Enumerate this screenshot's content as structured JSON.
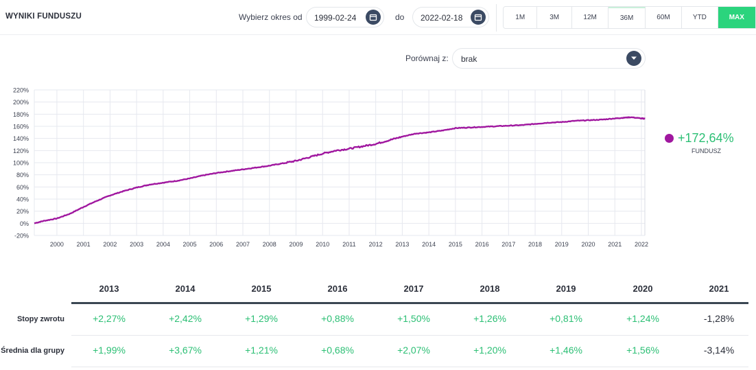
{
  "header": {
    "title": "WYNIKI FUNDUSZU",
    "period_label": "Wybierz okres od",
    "date_from": "1999-02-24",
    "to_label": "do",
    "date_to": "2022-02-18",
    "ranges": [
      "1M",
      "3M",
      "12M",
      "36M",
      "60M",
      "YTD",
      "MAX"
    ],
    "active_range": "MAX"
  },
  "compare": {
    "label": "Porównaj z:",
    "value": "brak"
  },
  "legend": {
    "value": "+172,64%",
    "name": "FUNDUSZ",
    "color": "#a0179f"
  },
  "colors": {
    "accent": "#2bd47d",
    "positive": "#2bbf74",
    "line": "#a0179f",
    "dark_button": "#3b4a63"
  },
  "chart_data": {
    "type": "line",
    "title": "",
    "xlabel": "",
    "ylabel": "",
    "ylim": [
      -20,
      220
    ],
    "y_ticks": [
      "220%",
      "200%",
      "180%",
      "160%",
      "140%",
      "120%",
      "100%",
      "80%",
      "60%",
      "40%",
      "20%",
      "0%",
      "-20%"
    ],
    "x_ticks": [
      "2000",
      "2001",
      "2002",
      "2003",
      "2004",
      "2005",
      "2006",
      "2007",
      "2008",
      "2009",
      "2010",
      "2011",
      "2012",
      "2013",
      "2014",
      "2015",
      "2016",
      "2017",
      "2018",
      "2019",
      "2020",
      "2021",
      "2022"
    ],
    "grid": true,
    "series": [
      {
        "name": "FUNDUSZ",
        "x": [
          1999.15,
          1999.5,
          2000.0,
          2000.5,
          2001.0,
          2001.5,
          2002.0,
          2002.5,
          2003.0,
          2003.5,
          2004.0,
          2004.5,
          2005.0,
          2005.5,
          2006.0,
          2006.5,
          2007.0,
          2007.5,
          2008.0,
          2008.5,
          2009.0,
          2009.5,
          2010.0,
          2010.5,
          2011.0,
          2011.5,
          2012.0,
          2012.5,
          2013.0,
          2013.5,
          2014.0,
          2014.5,
          2015.0,
          2015.5,
          2016.0,
          2016.5,
          2017.0,
          2017.5,
          2018.0,
          2018.5,
          2019.0,
          2019.5,
          2020.0,
          2020.5,
          2021.0,
          2021.3,
          2021.6,
          2022.0,
          2022.13
        ],
        "y": [
          0,
          4,
          8,
          16,
          27,
          37,
          46,
          53,
          59,
          64,
          67,
          70,
          74,
          79,
          83,
          86,
          89,
          92,
          95,
          99,
          103,
          109,
          115,
          120,
          123,
          127,
          131,
          137,
          143,
          148,
          150,
          153,
          157,
          158,
          159,
          160,
          161,
          162,
          164,
          166,
          167,
          169,
          170,
          171,
          173,
          174,
          175,
          173,
          172.64
        ]
      }
    ]
  },
  "returns_table": {
    "years": [
      "2013",
      "2014",
      "2015",
      "2016",
      "2017",
      "2018",
      "2019",
      "2020",
      "2021"
    ],
    "rows": [
      {
        "label": "Stopy zwrotu",
        "values": [
          "+2,27%",
          "+2,42%",
          "+1,29%",
          "+0,88%",
          "+1,50%",
          "+1,26%",
          "+0,81%",
          "+1,24%",
          "-1,28%"
        ]
      },
      {
        "label": "Średnia dla grupy",
        "values": [
          "+1,99%",
          "+3,67%",
          "+1,21%",
          "+0,68%",
          "+2,07%",
          "+1,20%",
          "+1,46%",
          "+1,56%",
          "-3,14%"
        ]
      }
    ]
  }
}
